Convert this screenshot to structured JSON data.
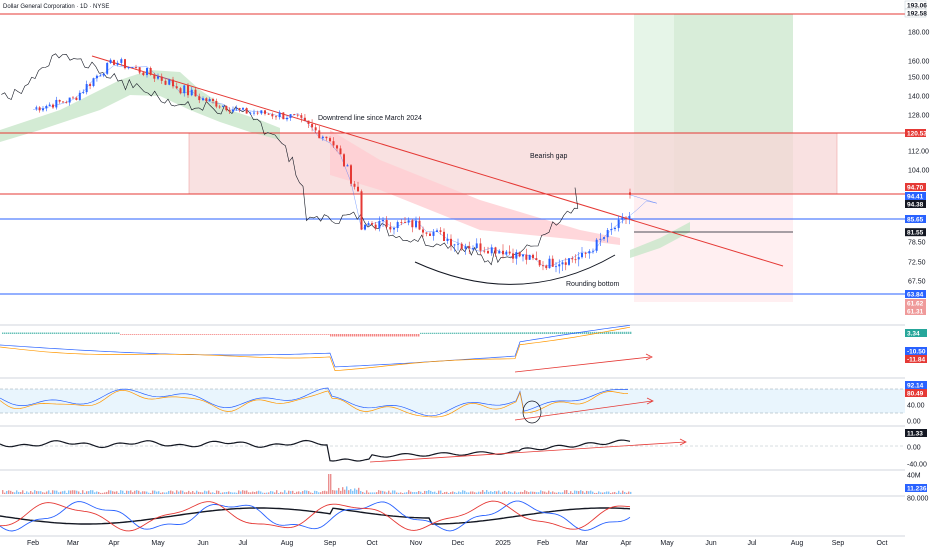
{
  "header": {
    "title": "Dollar General Corporation · 1D · NYSE"
  },
  "colors": {
    "up_candle": "#2962ff",
    "down_candle": "#e53935",
    "gap_fill": "#f8d7d7",
    "downtrend_line": "#e53935",
    "level_red": "#e53935",
    "level_blue": "#2962ff",
    "target_green": "#a5d6a7",
    "ichimoku_cloud_green": "#c8e6c9",
    "ichimoku_cloud_red": "#ffcdd2",
    "rsi_band": "#e3f2fd",
    "black_line": "#131722",
    "orange_line": "#ff9800"
  },
  "price_axis": {
    "ticks": [
      "180.00",
      "160.00",
      "150.00",
      "140.00",
      "128.00",
      "112.00",
      "104.00",
      "78.50",
      "72.50",
      "67.50"
    ]
  },
  "price_tags": [
    {
      "label": "193.06",
      "bg": "#ffffff",
      "dark": true
    },
    {
      "label": "192.58",
      "bg": "#ffffff",
      "dark": true
    },
    {
      "label": "120.53",
      "bg": "#e53935",
      "dark": false
    },
    {
      "label": "94.70",
      "bg": "#e53935",
      "dark": false
    },
    {
      "label": "94.41",
      "bg": "#2962ff",
      "dark": false
    },
    {
      "label": "94.38",
      "bg": "#131722",
      "dark": false
    },
    {
      "label": "85.65",
      "bg": "#2962ff",
      "dark": false
    },
    {
      "label": "81.55",
      "bg": "#131722",
      "dark": false
    },
    {
      "label": "63.84",
      "bg": "#2962ff",
      "dark": false
    },
    {
      "label": "61.62",
      "bg": "#ef9a9a",
      "dark": false
    },
    {
      "label": "61.31",
      "bg": "#ef9a9a",
      "dark": false
    }
  ],
  "annotations": {
    "downtrend": "Downtrend line since March 2024",
    "gap": "Bearish gap",
    "rounding": "Rounding bottom"
  },
  "indicators": {
    "macd": {
      "ticks": [
        "3.34",
        "-10.50",
        "-11.84"
      ]
    },
    "rsi": {
      "ticks": [
        "92.14",
        "80.49",
        "40.00",
        "0.00"
      ]
    },
    "obv": {
      "ticks": [
        "11.33",
        "0.00",
        "-40.00"
      ]
    },
    "volume": {
      "ticks": [
        "40M",
        "11.236"
      ]
    },
    "osc": {
      "ticks": [
        "80.000"
      ]
    }
  },
  "time_axis": {
    "labels": [
      "Feb",
      "Mar",
      "Apr",
      "May",
      "Jun",
      "Jul",
      "Aug",
      "Sep",
      "Oct",
      "Nov",
      "Dec",
      "2025",
      "Feb",
      "Mar",
      "Apr",
      "May",
      "Jun",
      "Jul",
      "Aug",
      "Sep",
      "Oct"
    ]
  },
  "chart_data": {
    "type": "candlestick",
    "title": "Dollar General Corporation · 1D · NYSE",
    "x_range": [
      "2024-01",
      "2025-10"
    ],
    "y_range": [
      61,
      193
    ],
    "levels": [
      120.53,
      94.7,
      85.65,
      81.55,
      63.84
    ],
    "gap_zone": [
      94.7,
      120.53
    ],
    "target_zone": [
      94.7,
      193.06
    ],
    "stop_zone": [
      63.84,
      94.7
    ],
    "downtrend_line": {
      "start": [
        "2024-03",
        165
      ],
      "end": [
        "2025-07",
        76
      ]
    },
    "closes_approx": [
      {
        "month": "2024-01",
        "close": 132
      },
      {
        "month": "2024-02",
        "close": 138
      },
      {
        "month": "2024-03",
        "close": 160
      },
      {
        "month": "2024-04",
        "close": 150
      },
      {
        "month": "2024-05",
        "close": 138
      },
      {
        "month": "2024-06",
        "close": 130
      },
      {
        "month": "2024-07",
        "close": 128
      },
      {
        "month": "2024-08",
        "close": 118
      },
      {
        "month": "2024-09",
        "close": 84
      },
      {
        "month": "2024-10",
        "close": 84
      },
      {
        "month": "2024-11",
        "close": 78
      },
      {
        "month": "2024-12",
        "close": 76
      },
      {
        "month": "2025-01",
        "close": 72
      },
      {
        "month": "2025-02",
        "close": 74
      },
      {
        "month": "2025-03",
        "close": 86
      },
      {
        "month": "2025-04",
        "close": 94.38
      }
    ]
  }
}
